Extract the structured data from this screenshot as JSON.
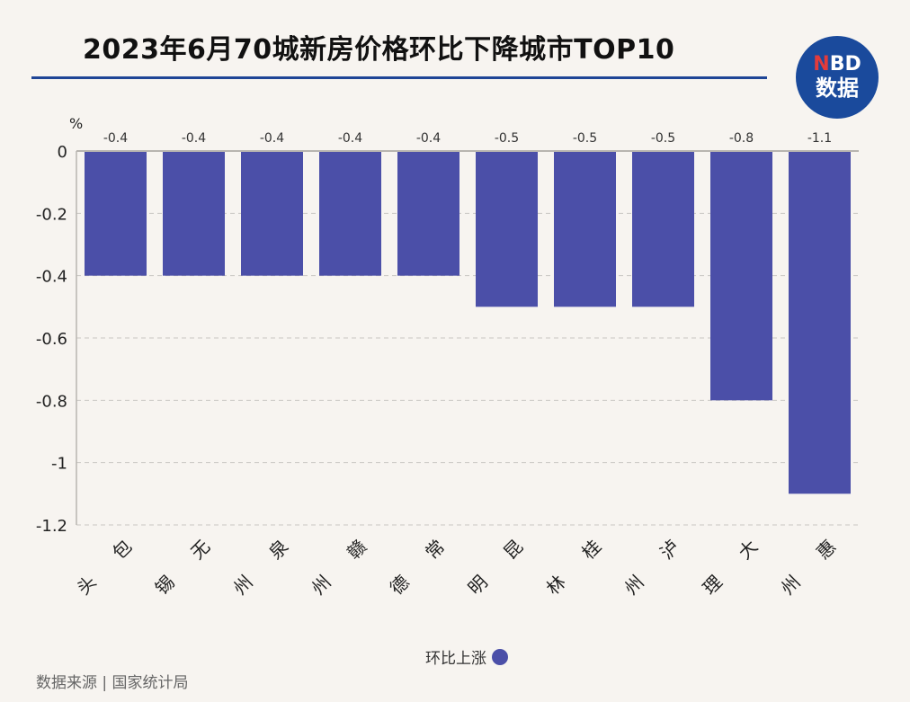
{
  "header": {
    "title": "2023年6月70城新房价格环比下降城市TOP10",
    "logo_top": "NBD",
    "logo_bottom": "数据"
  },
  "chart_data": {
    "type": "bar",
    "unit_label": "%",
    "categories": [
      [
        "包",
        "头"
      ],
      [
        "无",
        "锡"
      ],
      [
        "泉",
        "州"
      ],
      [
        "赣",
        "州"
      ],
      [
        "常",
        "德"
      ],
      [
        "昆",
        "明"
      ],
      [
        "桂",
        "林"
      ],
      [
        "泸",
        "州"
      ],
      [
        "大",
        "理"
      ],
      [
        "惠",
        "州"
      ]
    ],
    "values": [
      -0.4,
      -0.4,
      -0.4,
      -0.4,
      -0.4,
      -0.5,
      -0.5,
      -0.5,
      -0.8,
      -1.1
    ],
    "data_labels": [
      "-0.4",
      "-0.4",
      "-0.4",
      "-0.4",
      "-0.4",
      "-0.5",
      "-0.5",
      "-0.5",
      "-0.8",
      "-1.1"
    ],
    "y_ticks": [
      0,
      -0.2,
      -0.4,
      -0.6,
      -0.8,
      -1,
      -1.2
    ],
    "y_tick_labels": [
      "0",
      "-0.2",
      "-0.4",
      "-0.6",
      "-0.8",
      "-1",
      "-1.2"
    ],
    "ylim": [
      -1.2,
      0
    ],
    "grid": true,
    "bar_color": "#4b4fa8",
    "legend": {
      "label": "环比上涨",
      "position": "bottom-center"
    }
  },
  "footer": {
    "source": "数据来源 | 国家统计局"
  }
}
